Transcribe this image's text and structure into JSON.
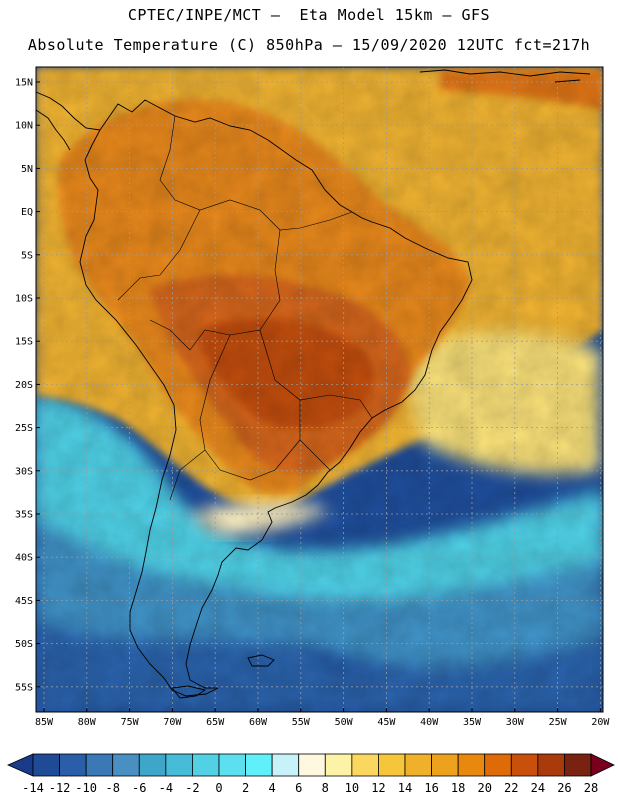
{
  "title": {
    "line1": "CPTEC/INPE/MCT –  Eta Model 15km – GFS",
    "line2": "Absolute Temperature (C) 850hPa – 15/09/2020 12UTC fct=217h"
  },
  "lat_labels": [
    "15N",
    "10N",
    "5N",
    "EQ",
    "5S",
    "10S",
    "15S",
    "20S",
    "25S",
    "30S",
    "35S",
    "40S",
    "45S",
    "50S",
    "55S"
  ],
  "lon_labels": [
    "85W",
    "80W",
    "75W",
    "70W",
    "65W",
    "60W",
    "55W",
    "50W",
    "45W",
    "40W",
    "35W",
    "30W",
    "25W",
    "20W"
  ],
  "colorbar": {
    "ticks": [
      "-14",
      "-12",
      "-10",
      "-8",
      "-6",
      "-4",
      "-2",
      "0",
      "2",
      "4",
      "6",
      "8",
      "10",
      "12",
      "14",
      "16",
      "18",
      "20",
      "22",
      "24",
      "26",
      "28"
    ],
    "colors": [
      "#1e4a96",
      "#2a5ea8",
      "#3a78b6",
      "#4a8fc2",
      "#3ea6c8",
      "#46bcd8",
      "#52d0e4",
      "#5ce0f0",
      "#60f0fa",
      "#c8f2fa",
      "#fff8e0",
      "#fdf3a6",
      "#fcd760",
      "#f5c63c",
      "#f0b12a",
      "#eda21e",
      "#e8880e",
      "#de6a08",
      "#c8500a",
      "#a83a0c",
      "#7a2212"
    ],
    "under_color": "#1a3a8a",
    "over_color": "#78001e"
  },
  "legend_colors": {
    "ocean_deep": "#1f4f9e",
    "ocean_mid": "#4fd2e8",
    "land_hot": "#c95c14",
    "land_warm": "#e8881a"
  }
}
